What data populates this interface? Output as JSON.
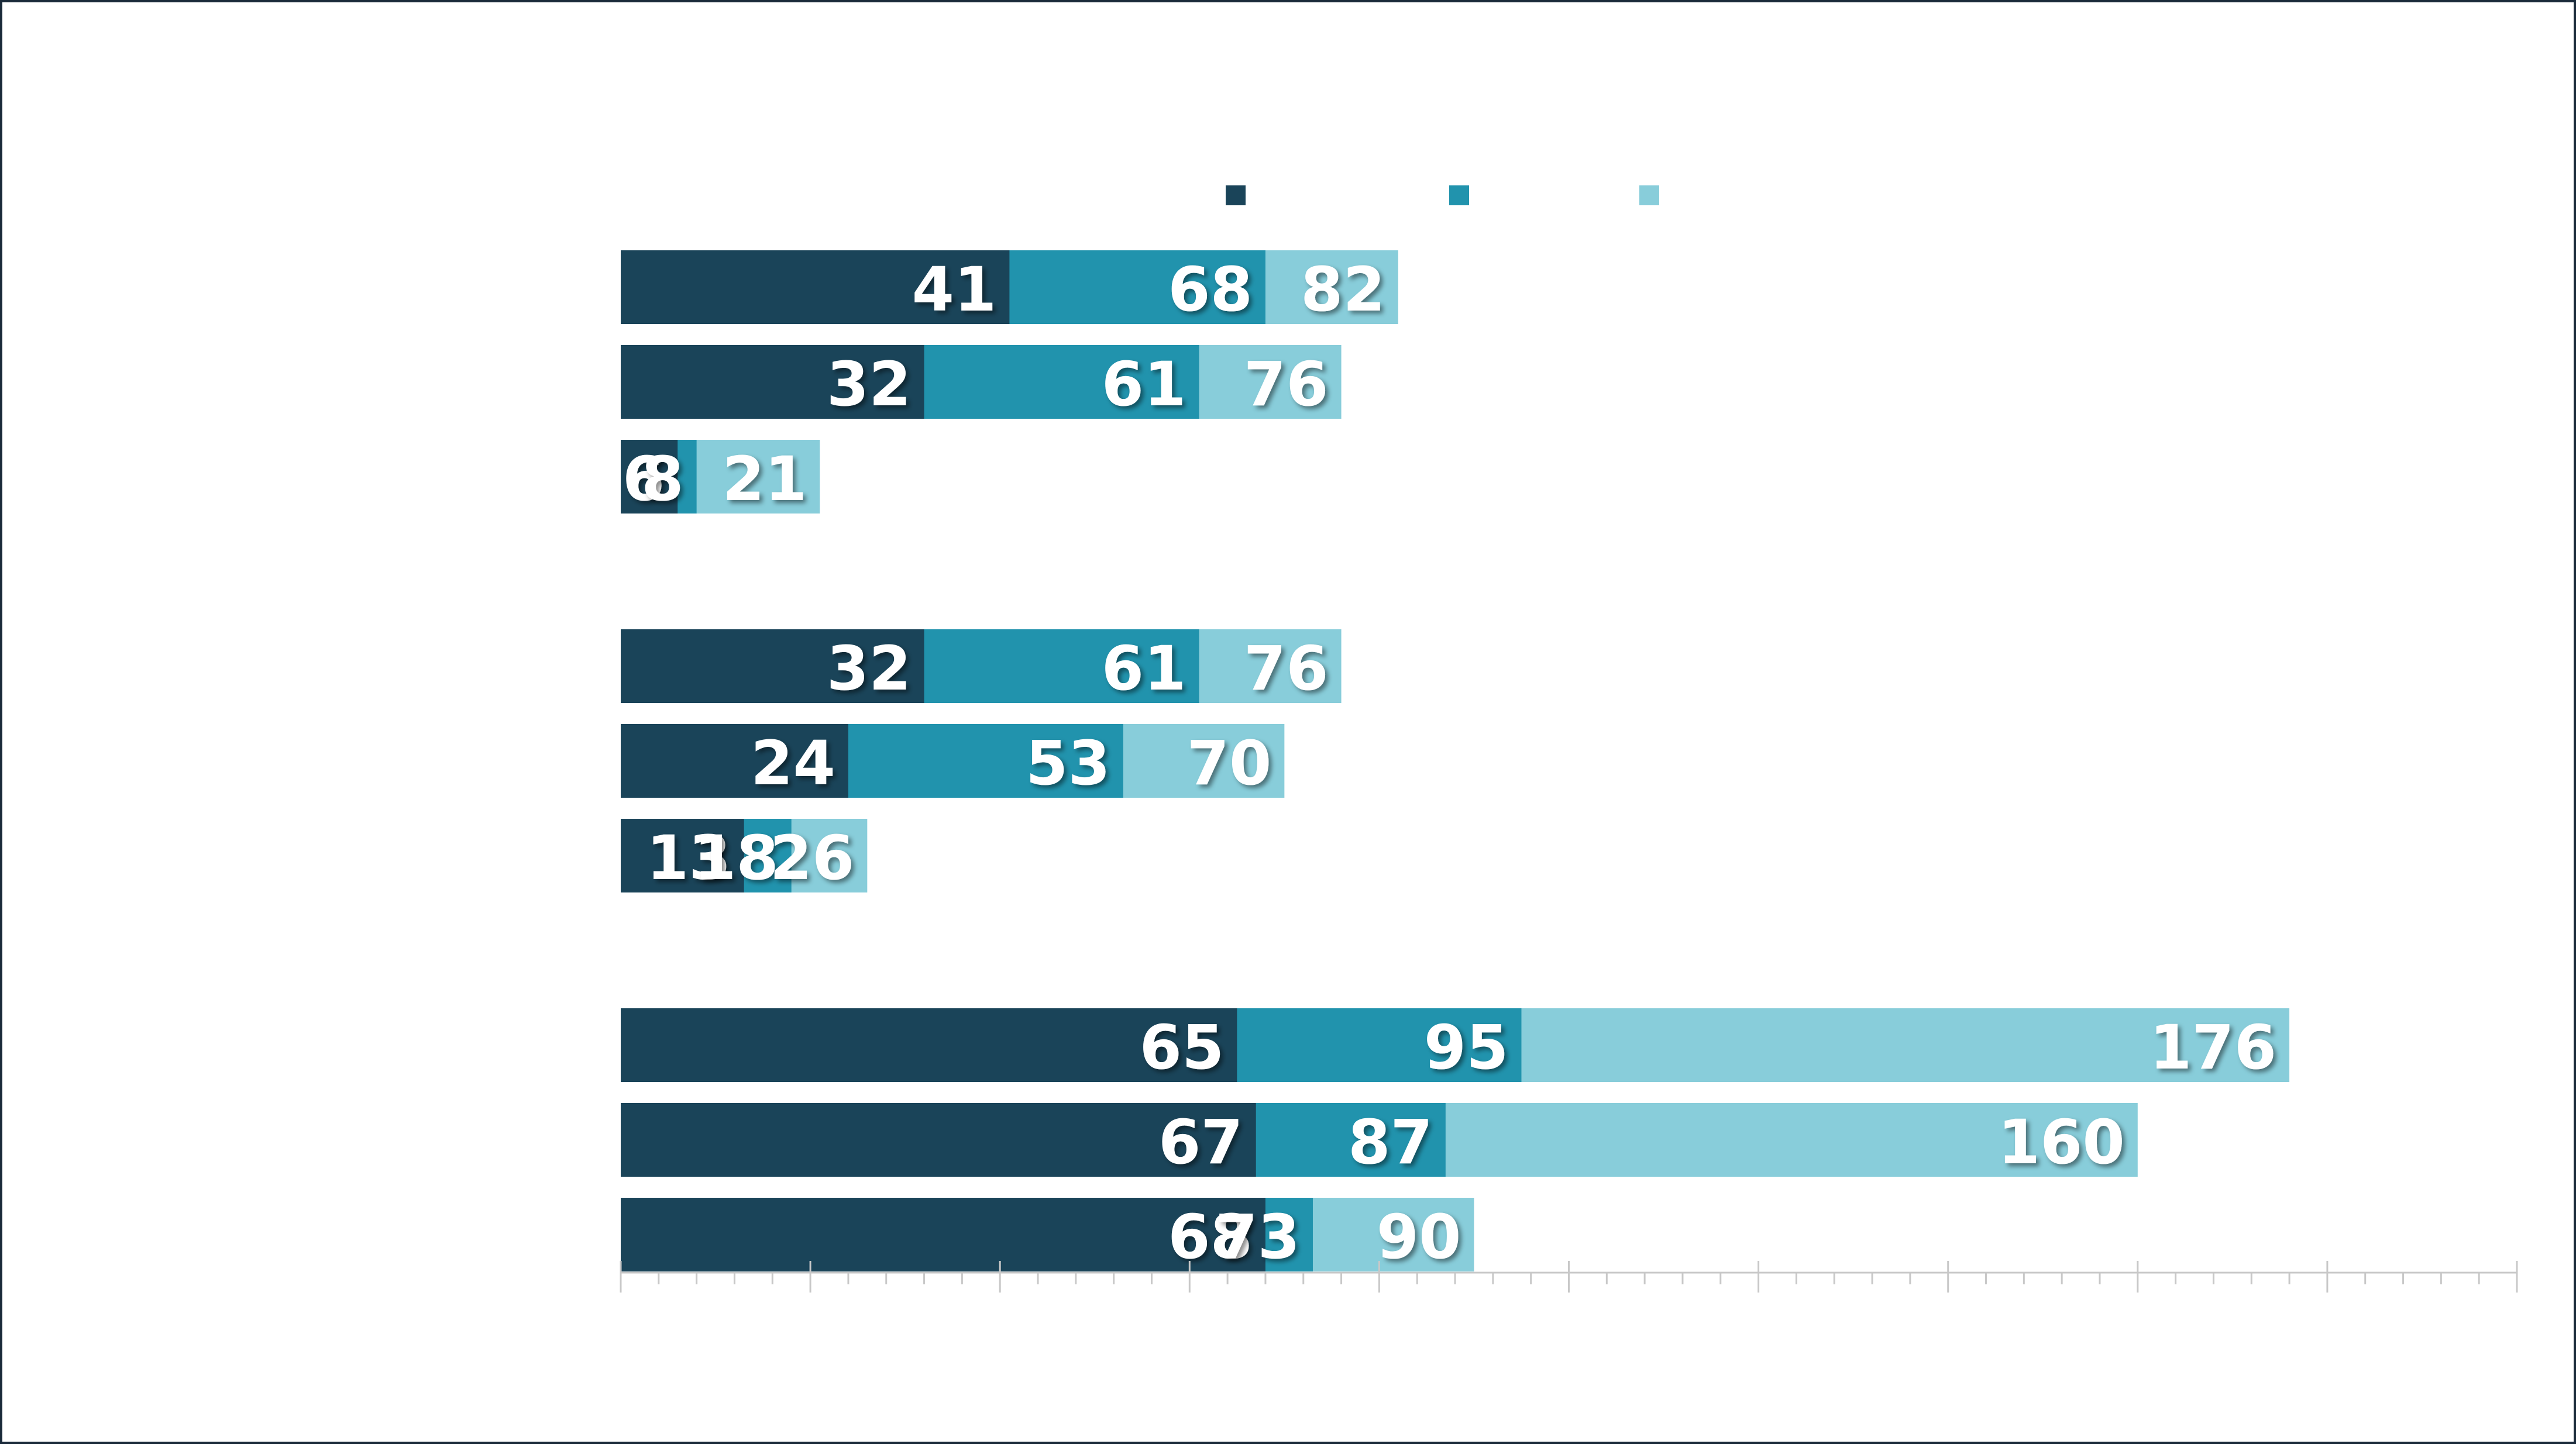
{
  "chart_data": {
    "type": "bar",
    "orientation": "horizontal",
    "overlap": true,
    "categories": [
      null,
      null,
      null,
      null,
      null,
      null,
      null,
      null,
      null,
      null,
      null
    ],
    "series": [
      {
        "color": "#1a4459",
        "values": [
          41,
          32,
          6,
          null,
          32,
          24,
          13,
          null,
          65,
          67,
          68
        ]
      },
      {
        "color": "#2193ad",
        "values": [
          68,
          61,
          8,
          null,
          61,
          53,
          18,
          null,
          95,
          87,
          73
        ]
      },
      {
        "color": "#88cdda",
        "values": [
          82,
          76,
          21,
          null,
          76,
          70,
          26,
          null,
          176,
          160,
          90
        ]
      }
    ],
    "xlim": [
      0,
      200
    ],
    "xticks": [
      0,
      20,
      40,
      60,
      80,
      100,
      120,
      140,
      160,
      180,
      200
    ],
    "minor_xticks": [
      4,
      8,
      12,
      16,
      24,
      28,
      32,
      36,
      44,
      48,
      52,
      56,
      64,
      68,
      72,
      76,
      84,
      88,
      92,
      96,
      104,
      108,
      112,
      116,
      124,
      128,
      132,
      136,
      144,
      148,
      152,
      156,
      164,
      168,
      172,
      176,
      184,
      188,
      192,
      196
    ],
    "data_labels": true
  }
}
